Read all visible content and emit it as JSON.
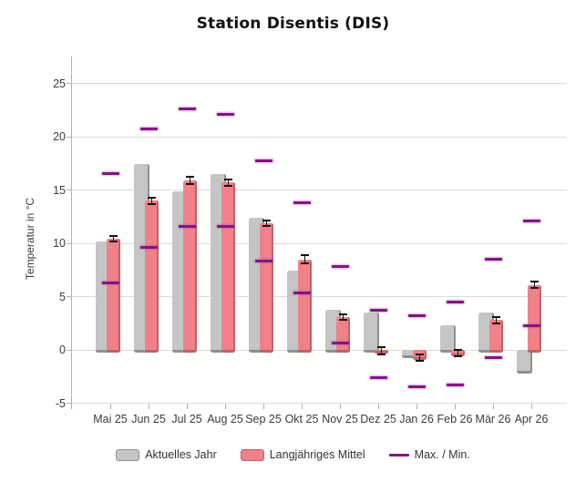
{
  "title": "Station Disentis (DIS)",
  "y_axis": {
    "label": "Temperatur in °C",
    "ticks": [
      25,
      20,
      15,
      10,
      5,
      0,
      -5
    ]
  },
  "legend": {
    "items": [
      {
        "label": "Aktuelles Jahr",
        "swatch": "gray-bar-swatch",
        "color": "#c6c5c5"
      },
      {
        "label": "Langjähriges Mittel",
        "swatch": "pink-bar-swatch",
        "color": "#f18088"
      },
      {
        "label": "Max. / Min.",
        "swatch": "purple-line-swatch",
        "color": "#841484"
      }
    ]
  },
  "colors": {
    "current_year_bar": "#c6c5c5",
    "current_year_edge": "#8f8f8f",
    "longterm_mean_bar": "#f18088",
    "longterm_mean_edge": "#b9636b",
    "maxmin_marker": "#841484",
    "gridline": "#dcdcdc",
    "axis": "#b0b0b0",
    "text": "#333333"
  },
  "chart_data": {
    "type": "bar",
    "title": "Station Disentis (DIS)",
    "xlabel": "",
    "ylabel": "Temperatur in °C",
    "ylim": [
      -5,
      27
    ],
    "y_ticks": [
      25,
      20,
      15,
      10,
      5,
      0,
      -5
    ],
    "grid": true,
    "legend_position": "bottom",
    "categories": [
      "Mai 25",
      "Jun 25",
      "Jul 25",
      "Aug 25",
      "Sep 25",
      "Okt 25",
      "Nov 25",
      "Dez 25",
      "Jan 26",
      "Feb 26",
      "Mär 26",
      "Apr 26"
    ],
    "series": [
      {
        "name": "Aktuelles Jahr",
        "render": "bar",
        "color": "#c6c5c5",
        "values": [
          10.2,
          17.4,
          14.9,
          16.5,
          12.4,
          7.4,
          3.8,
          3.5,
          -0.5,
          2.3,
          3.5,
          -2.0
        ]
      },
      {
        "name": "Langjähriges Mittel",
        "render": "bar",
        "color": "#f18088",
        "values": [
          10.4,
          14.0,
          15.9,
          15.7,
          11.9,
          8.5,
          3.1,
          -0.1,
          -0.7,
          -0.3,
          2.8,
          6.1
        ],
        "error": [
          0.35,
          0.4,
          0.45,
          0.4,
          0.35,
          0.45,
          0.35,
          0.4,
          0.4,
          0.4,
          0.4,
          0.4
        ]
      },
      {
        "name": "Max.",
        "render": "marker",
        "color": "#841484",
        "values": [
          16.5,
          20.7,
          22.6,
          22.1,
          17.7,
          13.8,
          7.8,
          3.7,
          3.2,
          4.5,
          8.5,
          12.1
        ]
      },
      {
        "name": "Min.",
        "render": "marker",
        "color": "#841484",
        "values": [
          6.3,
          9.6,
          11.6,
          11.6,
          8.3,
          5.3,
          0.6,
          -2.6,
          -3.5,
          -3.3,
          -0.7,
          2.3
        ]
      }
    ]
  }
}
